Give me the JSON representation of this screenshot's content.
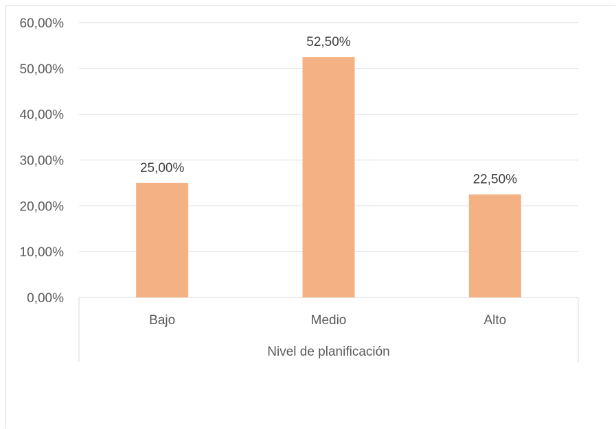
{
  "chart_data": {
    "type": "bar",
    "categories": [
      "Bajo",
      "Medio",
      "Alto"
    ],
    "values": [
      25.0,
      52.5,
      22.5
    ],
    "data_labels": [
      "25,00%",
      "52,50%",
      "22,50%"
    ],
    "xlabel": "Nivel de planificación",
    "ylabel": "",
    "ylim": [
      0,
      60
    ],
    "y_ticks": [
      0,
      10,
      20,
      30,
      40,
      50,
      60
    ],
    "y_tick_labels": [
      "0,00%",
      "10,00%",
      "20,00%",
      "30,00%",
      "40,00%",
      "50,00%",
      "60,00%"
    ],
    "grid": true,
    "legend": "none",
    "colors": {
      "bar": "#F4B183",
      "grid": "#d9d9d9",
      "axis_text": "#595959"
    }
  }
}
